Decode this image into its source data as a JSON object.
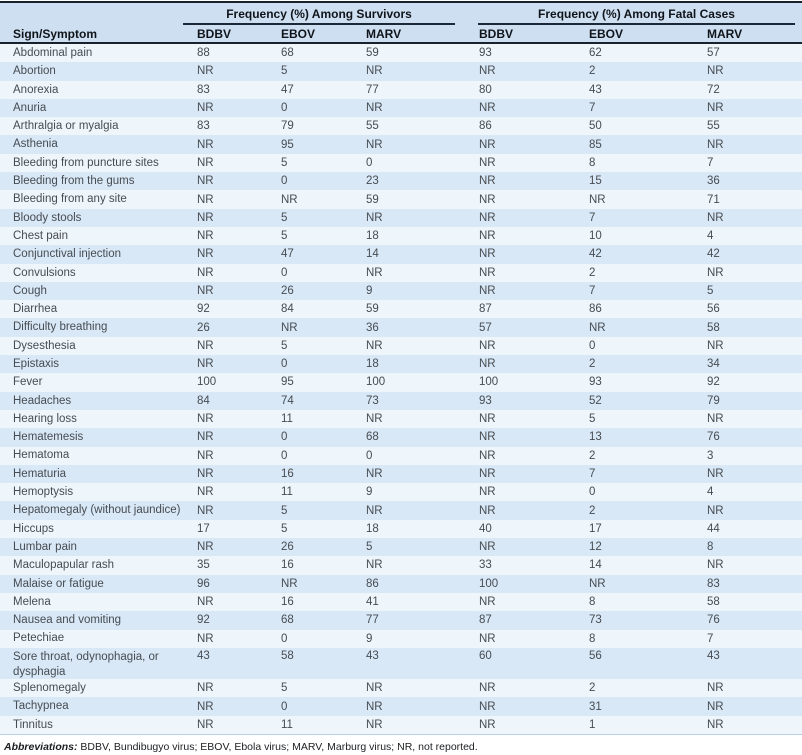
{
  "table": {
    "col_header": "Sign/Symptom",
    "group_headers": {
      "survivors": "Frequency (%) Among Survivors",
      "fatal": "Frequency (%) Among Fatal Cases"
    },
    "sub_headers": {
      "s_bdbv": "BDBV",
      "s_ebov": "EBOV",
      "s_marv": "MARV",
      "f_bdbv": "BDBV",
      "f_ebov": "EBOV",
      "f_marv": "MARV"
    },
    "rows": [
      {
        "label": "Abdominal pain",
        "values": [
          "88",
          "68",
          "59",
          "93",
          "62",
          "57"
        ]
      },
      {
        "label": "Abortion",
        "values": [
          "NR",
          "5",
          "NR",
          "NR",
          "2",
          "NR"
        ]
      },
      {
        "label": "Anorexia",
        "values": [
          "83",
          "47",
          "77",
          "80",
          "43",
          "72"
        ]
      },
      {
        "label": "Anuria",
        "values": [
          "NR",
          "0",
          "NR",
          "NR",
          "7",
          "NR"
        ]
      },
      {
        "label": "Arthralgia or myalgia",
        "values": [
          "83",
          "79",
          "55",
          "86",
          "50",
          "55"
        ]
      },
      {
        "label": "Asthenia",
        "values": [
          "NR",
          "95",
          "NR",
          "NR",
          "85",
          "NR"
        ]
      },
      {
        "label": "Bleeding from puncture sites",
        "values": [
          "NR",
          "5",
          "0",
          "NR",
          "8",
          "7"
        ]
      },
      {
        "label": "Bleeding from the gums",
        "values": [
          "NR",
          "0",
          "23",
          "NR",
          "15",
          "36"
        ]
      },
      {
        "label": "Bleeding from any site",
        "values": [
          "NR",
          "NR",
          "59",
          "NR",
          "NR",
          "71"
        ]
      },
      {
        "label": "Bloody stools",
        "values": [
          "NR",
          "5",
          "NR",
          "NR",
          "7",
          "NR"
        ]
      },
      {
        "label": "Chest pain",
        "values": [
          "NR",
          "5",
          "18",
          "NR",
          "10",
          "4"
        ]
      },
      {
        "label": "Conjunctival injection",
        "values": [
          "NR",
          "47",
          "14",
          "NR",
          "42",
          "42"
        ]
      },
      {
        "label": "Convulsions",
        "values": [
          "NR",
          "0",
          "NR",
          "NR",
          "2",
          "NR"
        ]
      },
      {
        "label": "Cough",
        "values": [
          "NR",
          "26",
          "9",
          "NR",
          "7",
          "5"
        ]
      },
      {
        "label": "Diarrhea",
        "values": [
          "92",
          "84",
          "59",
          "87",
          "86",
          "56"
        ]
      },
      {
        "label": "Difficulty breathing",
        "values": [
          "26",
          "NR",
          "36",
          "57",
          "NR",
          "58"
        ]
      },
      {
        "label": "Dysesthesia",
        "values": [
          "NR",
          "5",
          "NR",
          "NR",
          "0",
          "NR"
        ]
      },
      {
        "label": "Epistaxis",
        "values": [
          "NR",
          "0",
          "18",
          "NR",
          "2",
          "34"
        ]
      },
      {
        "label": "Fever",
        "values": [
          "100",
          "95",
          "100",
          "100",
          "93",
          "92"
        ]
      },
      {
        "label": "Headaches",
        "values": [
          "84",
          "74",
          "73",
          "93",
          "52",
          "79"
        ]
      },
      {
        "label": "Hearing loss",
        "values": [
          "NR",
          "11",
          "NR",
          "NR",
          "5",
          "NR"
        ]
      },
      {
        "label": "Hematemesis",
        "values": [
          "NR",
          "0",
          "68",
          "NR",
          "13",
          "76"
        ]
      },
      {
        "label": "Hematoma",
        "values": [
          "NR",
          "0",
          "0",
          "NR",
          "2",
          "3"
        ]
      },
      {
        "label": "Hematuria",
        "values": [
          "NR",
          "16",
          "NR",
          "NR",
          "7",
          "NR"
        ]
      },
      {
        "label": "Hemoptysis",
        "values": [
          "NR",
          "11",
          "9",
          "NR",
          "0",
          "4"
        ]
      },
      {
        "label": "Hepatomegaly (without jaundice)",
        "values": [
          "NR",
          "5",
          "NR",
          "NR",
          "2",
          "NR"
        ]
      },
      {
        "label": "Hiccups",
        "values": [
          "17",
          "5",
          "18",
          "40",
          "17",
          "44"
        ]
      },
      {
        "label": "Lumbar pain",
        "values": [
          "NR",
          "26",
          "5",
          "NR",
          "12",
          "8"
        ]
      },
      {
        "label": "Maculopapular rash",
        "values": [
          "35",
          "16",
          "NR",
          "33",
          "14",
          "NR"
        ]
      },
      {
        "label": "Malaise or fatigue",
        "values": [
          "96",
          "NR",
          "86",
          "100",
          "NR",
          "83"
        ]
      },
      {
        "label": "Melena",
        "values": [
          "NR",
          "16",
          "41",
          "NR",
          "8",
          "58"
        ]
      },
      {
        "label": "Nausea and vomiting",
        "values": [
          "92",
          "68",
          "77",
          "87",
          "73",
          "76"
        ]
      },
      {
        "label": "Petechiae",
        "values": [
          "NR",
          "0",
          "9",
          "NR",
          "8",
          "7"
        ]
      },
      {
        "label": "Sore throat, odynophagia, or dysphagia",
        "values": [
          "43",
          "58",
          "43",
          "60",
          "56",
          "43"
        ]
      },
      {
        "label": "Splenomegaly",
        "values": [
          "NR",
          "5",
          "NR",
          "NR",
          "2",
          "NR"
        ]
      },
      {
        "label": "Tachypnea",
        "values": [
          "NR",
          "0",
          "NR",
          "NR",
          "31",
          "NR"
        ]
      },
      {
        "label": "Tinnitus",
        "values": [
          "NR",
          "11",
          "NR",
          "NR",
          "1",
          "NR"
        ]
      }
    ],
    "footnote": {
      "label": "Abbreviations:",
      "text": " BDBV, Bundibugyo virus; EBOV, Ebola virus; MARV, Marburg virus; NR, not reported."
    }
  },
  "colors": {
    "header_band": "#cddff0",
    "row_light": "#eef5fb",
    "row_blue": "#d8e8f6",
    "rule_dark": "#18222e"
  }
}
